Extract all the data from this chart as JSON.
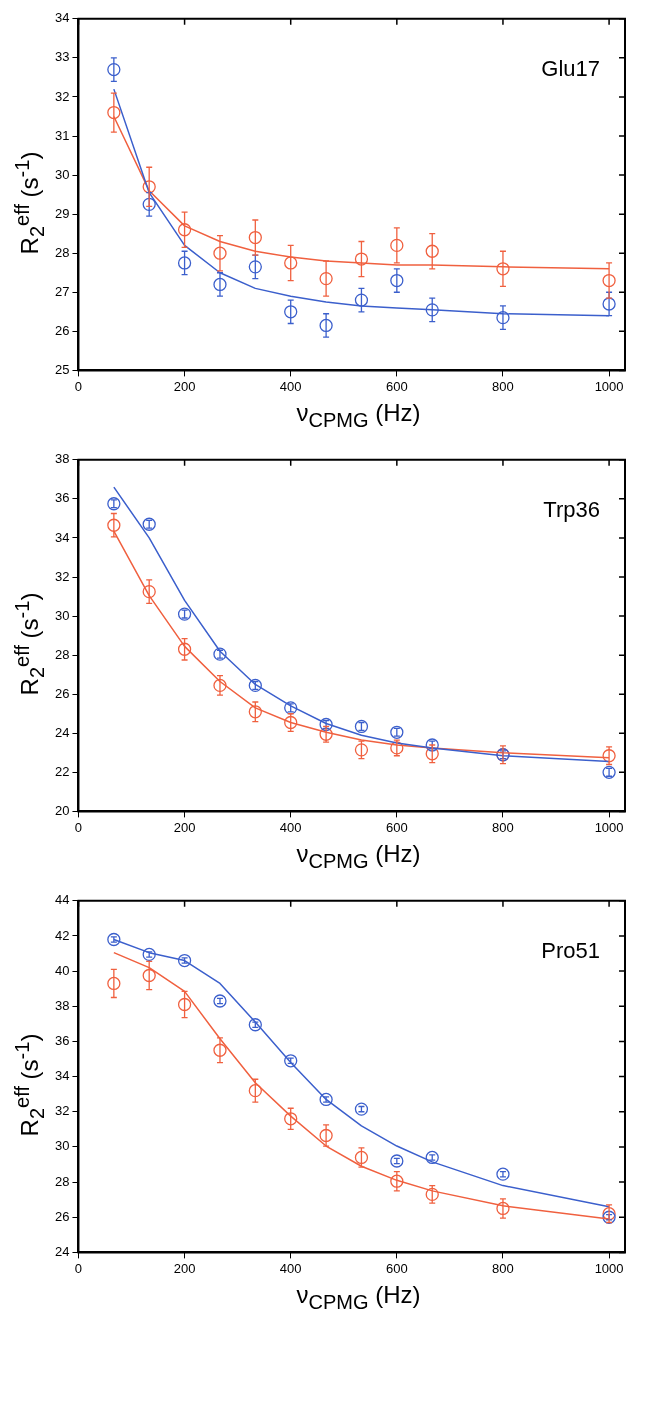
{
  "chart_data": [
    {
      "type": "scatter",
      "xlabel": "ν$_{CPMG}$ (Hz)",
      "ylabel": "R$_{2}$$^{eff}$ (s$^{-1}$)",
      "annotations": [
        "Glu17"
      ],
      "xlim": [
        0,
        1030
      ],
      "xticks": [
        0,
        200,
        400,
        600,
        800,
        1000
      ],
      "ylim": [
        25,
        34
      ],
      "yticks": [
        25,
        26,
        27,
        28,
        29,
        30,
        31,
        32,
        33,
        34
      ],
      "grid": false,
      "legend": false,
      "x": [
        66.7,
        133.3,
        200,
        266.7,
        333.3,
        400,
        466.7,
        533.3,
        600,
        666.7,
        800,
        1000
      ],
      "series": [
        {
          "type": "line",
          "color": "#3b5fcc",
          "marker": "none",
          "line_style": "solid",
          "values": [
            32.2,
            29.55,
            28.2,
            27.5,
            27.1,
            26.9,
            26.75,
            26.65,
            26.6,
            26.55,
            26.45,
            26.4
          ]
        },
        {
          "type": "line",
          "color": "#f0603f",
          "marker": "none",
          "line_style": "solid",
          "values": [
            31.5,
            29.6,
            28.7,
            28.3,
            28.05,
            27.9,
            27.8,
            27.75,
            27.7,
            27.7,
            27.65,
            27.6
          ]
        },
        {
          "type": "scatter",
          "color": "#3b5fcc",
          "marker": "circle",
          "values": [
            32.7,
            29.25,
            27.75,
            27.2,
            27.65,
            26.5,
            26.15,
            26.8,
            27.3,
            26.55,
            26.35,
            26.7
          ],
          "errors": [
            0.3,
            0.3,
            0.3,
            0.3,
            0.3,
            0.3,
            0.3,
            0.3,
            0.3,
            0.3,
            0.3,
            0.3
          ]
        },
        {
          "type": "scatter",
          "color": "#f0603f",
          "marker": "circle",
          "values": [
            31.6,
            29.7,
            28.6,
            28.0,
            28.4,
            27.75,
            27.35,
            27.85,
            28.2,
            28.05,
            27.6,
            27.3
          ],
          "errors": [
            0.5,
            0.5,
            0.45,
            0.45,
            0.45,
            0.45,
            0.45,
            0.45,
            0.45,
            0.45,
            0.45,
            0.45
          ]
        }
      ]
    },
    {
      "type": "scatter",
      "xlabel": "ν$_{CPMG}$ (Hz)",
      "ylabel": "R$_{2}$$^{eff}$ (s$^{-1}$)",
      "annotations": [
        "Trp36"
      ],
      "xlim": [
        0,
        1030
      ],
      "xticks": [
        0,
        200,
        400,
        600,
        800,
        1000
      ],
      "ylim": [
        20,
        38
      ],
      "yticks": [
        20,
        22,
        24,
        26,
        28,
        30,
        32,
        34,
        36,
        38
      ],
      "grid": false,
      "legend": false,
      "x": [
        66.7,
        133.3,
        200,
        266.7,
        333.3,
        400,
        466.7,
        533.3,
        600,
        666.7,
        800,
        1000
      ],
      "series": [
        {
          "type": "line",
          "color": "#3b5fcc",
          "marker": "none",
          "line_style": "solid",
          "values": [
            36.6,
            34.0,
            30.8,
            28.2,
            26.5,
            25.4,
            24.5,
            23.9,
            23.5,
            23.25,
            22.85,
            22.55
          ]
        },
        {
          "type": "line",
          "color": "#f0603f",
          "marker": "none",
          "line_style": "solid",
          "values": [
            34.35,
            31.05,
            28.45,
            26.65,
            25.3,
            24.55,
            24.05,
            23.65,
            23.4,
            23.25,
            23.0,
            22.75
          ]
        },
        {
          "type": "scatter",
          "color": "#3b5fcc",
          "values": [
            35.75,
            34.7,
            30.1,
            28.05,
            26.45,
            25.3,
            24.45,
            24.35,
            24.05,
            23.4,
            22.9,
            22.0
          ],
          "errors": [
            0.2,
            0.2,
            0.2,
            0.2,
            0.2,
            0.2,
            0.2,
            0.2,
            0.2,
            0.2,
            0.2,
            0.2
          ]
        },
        {
          "type": "scatter",
          "color": "#f0603f",
          "marker": "circle",
          "values": [
            34.65,
            31.25,
            28.3,
            26.45,
            25.1,
            24.55,
            23.95,
            23.15,
            23.25,
            22.95,
            22.9,
            22.85
          ],
          "errors": [
            0.6,
            0.6,
            0.55,
            0.5,
            0.5,
            0.45,
            0.4,
            0.45,
            0.4,
            0.45,
            0.45,
            0.45
          ]
        }
      ]
    },
    {
      "type": "scatter",
      "xlabel": "ν$_{CPMG}$ (Hz)",
      "ylabel": "R$_{2}$$^{eff}$ (s$^{-1}$)",
      "annotations": [
        "Pro51"
      ],
      "xlim": [
        0,
        1030
      ],
      "xticks": [
        0,
        200,
        400,
        600,
        800,
        1000
      ],
      "ylim": [
        24,
        44
      ],
      "yticks": [
        24,
        26,
        28,
        30,
        32,
        34,
        36,
        38,
        40,
        42,
        44
      ],
      "grid": false,
      "legend": false,
      "x": [
        66.7,
        133.3,
        200,
        266.7,
        333.3,
        400,
        466.7,
        533.3,
        600,
        666.7,
        800,
        1000
      ],
      "series": [
        {
          "type": "line",
          "color": "#3b5fcc",
          "marker": "none",
          "line_style": "solid",
          "values": [
            41.8,
            41.05,
            40.6,
            39.3,
            37.1,
            34.8,
            32.7,
            31.2,
            30.05,
            29.15,
            27.8,
            26.6
          ]
        },
        {
          "type": "line",
          "color": "#f0603f",
          "marker": "none",
          "line_style": "solid",
          "values": [
            41.05,
            40.2,
            38.85,
            36.15,
            33.65,
            31.75,
            30.05,
            28.9,
            28.1,
            27.5,
            26.65,
            25.9
          ]
        },
        {
          "type": "scatter",
          "color": "#3b5fcc",
          "values": [
            41.8,
            40.95,
            40.6,
            38.3,
            36.95,
            34.9,
            32.7,
            32.15,
            29.2,
            29.4,
            28.45,
            26.0
          ],
          "errors": [
            0.15,
            0.15,
            0.15,
            0.15,
            0.15,
            0.15,
            0.15,
            0.15,
            0.15,
            0.15,
            0.15,
            0.15
          ]
        },
        {
          "type": "scatter",
          "color": "#f0603f",
          "marker": "circle",
          "values": [
            39.3,
            39.75,
            38.1,
            35.5,
            33.2,
            31.6,
            30.65,
            29.4,
            28.05,
            27.3,
            26.5,
            26.2
          ],
          "errors": [
            0.8,
            0.8,
            0.75,
            0.7,
            0.65,
            0.6,
            0.6,
            0.55,
            0.55,
            0.5,
            0.55,
            0.5
          ]
        }
      ]
    }
  ]
}
